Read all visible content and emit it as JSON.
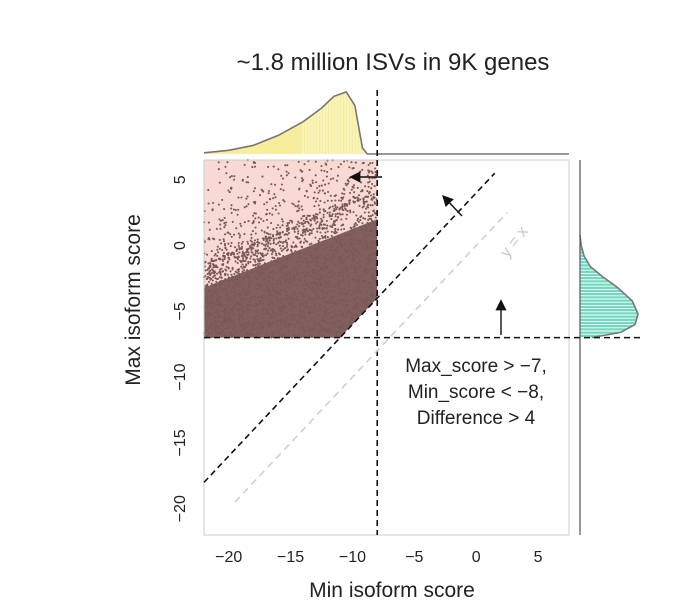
{
  "chart_data": {
    "type": "scatter",
    "title": "~1.8 million ISVs in 9K genes",
    "xlabel": "Min isoform score",
    "ylabel": "Max isoform score",
    "xlim": [
      -22,
      7.5
    ],
    "ylim": [
      -22,
      6.5
    ],
    "xticks": [
      -20,
      -15,
      -10,
      -5,
      0,
      5
    ],
    "yticks": [
      5,
      0,
      -5,
      -10,
      -15,
      -20
    ],
    "thresholds": {
      "max_score_gt": -7,
      "min_score_lt": -8,
      "difference_gt": 4
    },
    "reference_line_label": "y = x",
    "annotation_lines": [
      "Max_score > −7,",
      "Min_score < −8,",
      "Difference > 4"
    ],
    "top_marginal": {
      "type": "density",
      "color": "#f6ee9c",
      "x": [
        -22,
        -20,
        -18,
        -16,
        -14,
        -12.5,
        -11.5,
        -10.5,
        -9.8,
        -9.2,
        -8.8
      ],
      "density": [
        0.02,
        0.06,
        0.14,
        0.3,
        0.52,
        0.74,
        0.93,
        1.0,
        0.78,
        0.1,
        0.0
      ]
    },
    "right_marginal": {
      "type": "density",
      "color": "#70d8be",
      "y": [
        -7,
        -6.6,
        -6,
        -5.2,
        -4.2,
        -3.2,
        -2.4,
        -1.6,
        -0.8,
        0,
        0.8
      ],
      "density": [
        0.2,
        0.7,
        0.95,
        1.0,
        0.9,
        0.65,
        0.4,
        0.18,
        0.07,
        0.02,
        0.0
      ]
    },
    "scatter": {
      "point_color": "#7a5858",
      "background_region_color": "#f8d9d4",
      "region": {
        "x_max": -8,
        "y_min": -7,
        "y_max": 6.5
      },
      "point_count_rendered": 2600
    },
    "grid": false,
    "legend": "none"
  }
}
